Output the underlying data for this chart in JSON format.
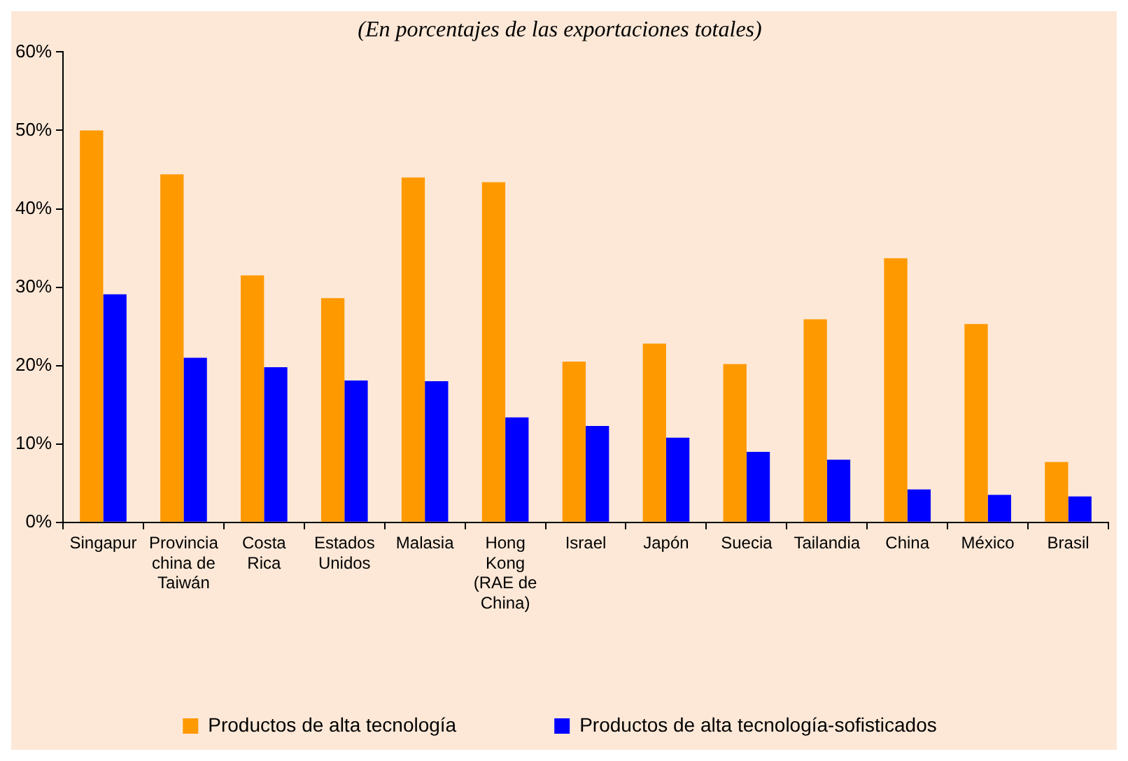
{
  "chart_data": {
    "type": "bar",
    "subtitle": "(En porcentajes de las exportaciones totales)",
    "categories": [
      "Singapur",
      "Provincia china de Taiwán",
      "Costa Rica",
      "Estados Unidos",
      "Malasia",
      "Hong Kong (RAE de China)",
      "Israel",
      "Japón",
      "Suecia",
      "Tailandia",
      "China",
      "México",
      "Brasil"
    ],
    "series": [
      {
        "name": "Productos de alta tecnología",
        "color": "#ff9900",
        "values": [
          50,
          44.4,
          31.5,
          28.6,
          44,
          43.4,
          20.5,
          22.8,
          20.2,
          25.9,
          33.7,
          25.3,
          7.7
        ]
      },
      {
        "name": "Productos de alta tecnología-sofisticados",
        "color": "#0000ff",
        "values": [
          29.1,
          21,
          19.8,
          18.1,
          18,
          13.4,
          12.3,
          10.8,
          9,
          8,
          4.2,
          3.5,
          3.3
        ]
      }
    ],
    "ylim": [
      0,
      60
    ],
    "yticks": [
      {
        "value": 0,
        "label": "0%"
      },
      {
        "value": 10,
        "label": "10%"
      },
      {
        "value": 20,
        "label": "20%"
      },
      {
        "value": 30,
        "label": "30%"
      },
      {
        "value": 40,
        "label": "40%"
      },
      {
        "value": 50,
        "label": "50%"
      },
      {
        "value": 60,
        "label": "60%"
      }
    ],
    "grid": false,
    "legend": "bottom"
  }
}
